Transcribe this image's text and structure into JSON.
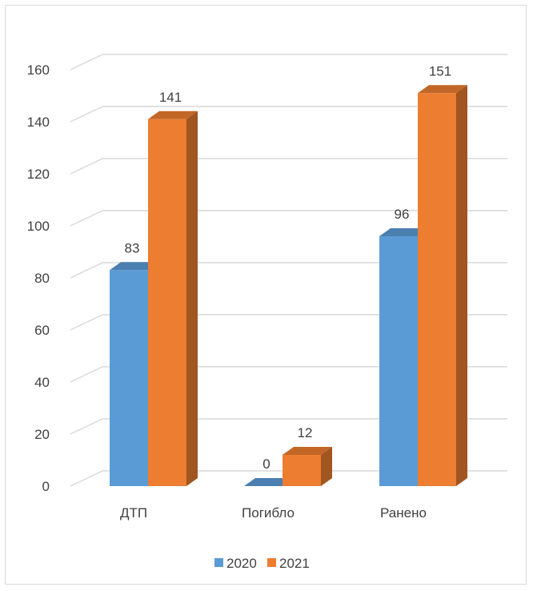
{
  "chart_data": {
    "type": "bar",
    "style": "3d-clustered-column",
    "title": "",
    "xlabel": "",
    "ylabel": "",
    "categories": [
      "ДТП",
      "Погибло",
      "Ранено"
    ],
    "series": [
      {
        "name": "2020",
        "values": [
          83,
          0,
          96
        ],
        "color": "#5b9bd5"
      },
      {
        "name": "2021",
        "values": [
          141,
          12,
          151
        ],
        "color": "#ed7d31"
      }
    ],
    "ylim": [
      0,
      160
    ],
    "yticks": [
      0,
      20,
      40,
      60,
      80,
      100,
      120,
      140,
      160
    ],
    "grid": true,
    "legend": "bottom",
    "data_labels": true
  }
}
